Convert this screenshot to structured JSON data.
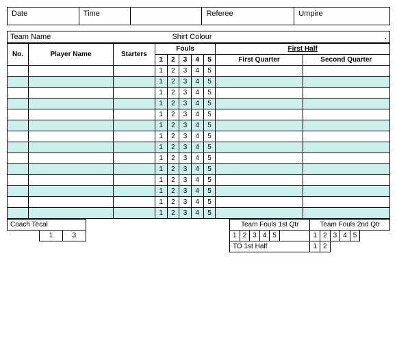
{
  "header": {
    "date": "Date",
    "time": "Time",
    "referee": "Referee",
    "umpire": "Umpire"
  },
  "team": {
    "name_label": "Team Name",
    "shirt_label": "Shirt Colour"
  },
  "columns": {
    "no": "No.",
    "player": "Player Name",
    "starters": "Starters",
    "fouls": "Fouls",
    "first_half": "First Half",
    "first_quarter": "First Quarter",
    "second_quarter": "Second Quarter"
  },
  "foul_nums": [
    "1",
    "2",
    "3",
    "4",
    "5"
  ],
  "row_count": 14,
  "alt_color": "#cdefec",
  "background_color": "#ffffff",
  "border_color": "#000000",
  "bottom": {
    "coach_tecal": "Coach Tecal",
    "coach_nums": [
      "1",
      "3"
    ],
    "team_fouls_1q": "Team Fouls 1st Qtr",
    "team_fouls_2q": "Team Fouls 2nd Qtr",
    "tf_nums": [
      "1",
      "2",
      "3",
      "4",
      "5"
    ],
    "to_1st_half": "TO 1st Half",
    "to_nums": [
      "1",
      "2"
    ]
  }
}
